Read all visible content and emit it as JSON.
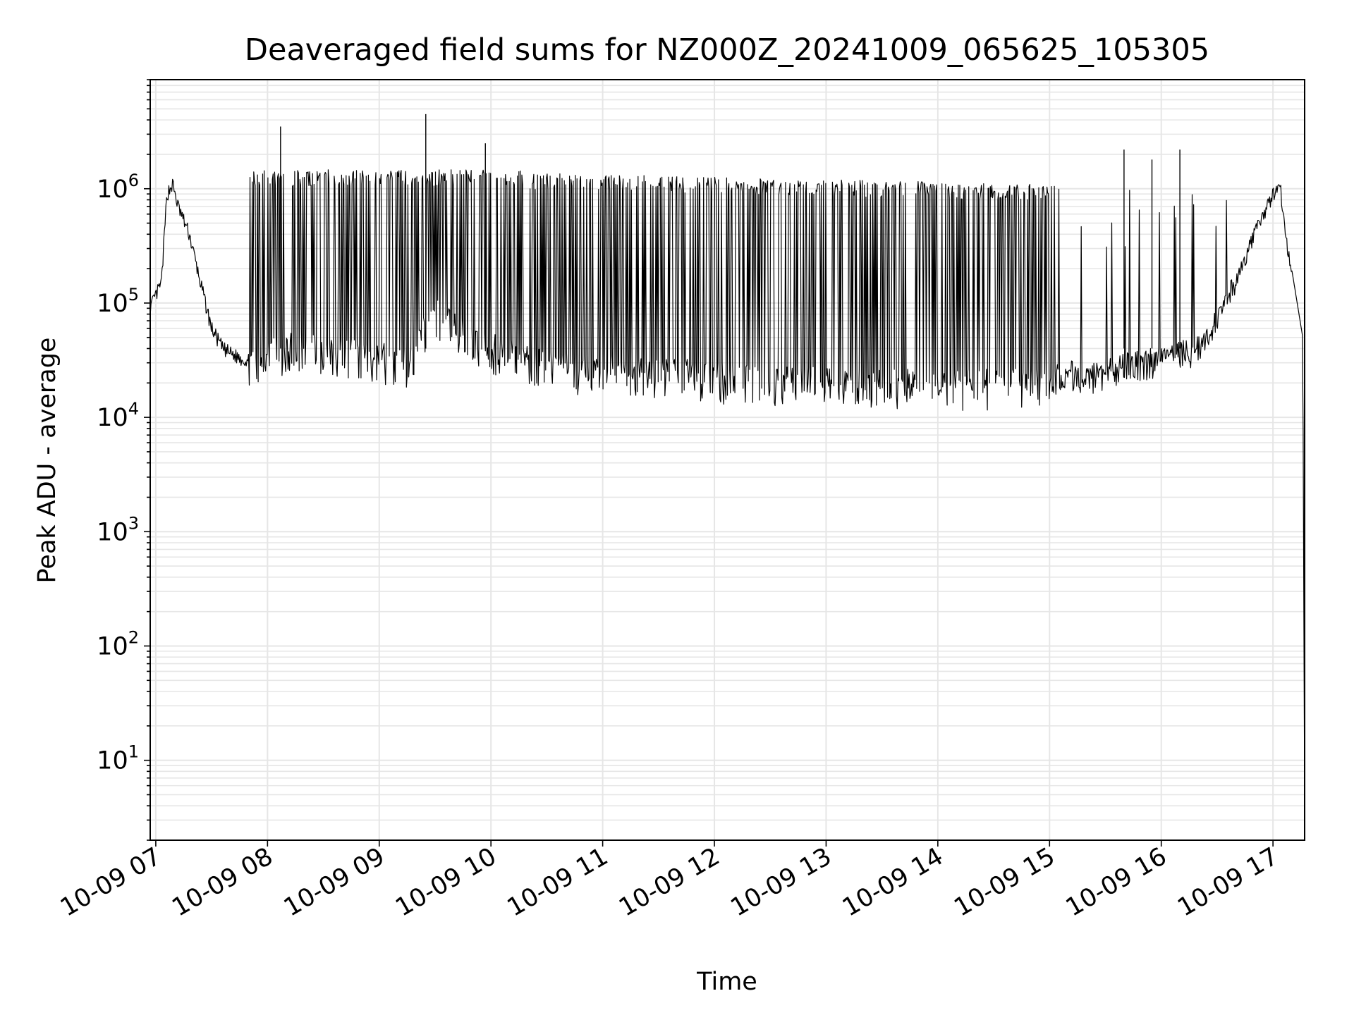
{
  "chart_data": {
    "type": "line",
    "title": "Deaveraged field sums for NZ000Z_20241009_065625_105305",
    "xlabel": "Time",
    "ylabel": "Peak ADU - average",
    "yscale": "log",
    "ylim": [
      2,
      9000000
    ],
    "xlim": [
      "2024-10-09 06:57",
      "2024-10-09 17:17"
    ],
    "grid": true,
    "legend": "none",
    "line_color": "#000000",
    "x_tick_labels": [
      "10-09 07",
      "10-09 08",
      "10-09 09",
      "10-09 10",
      "10-09 11",
      "10-09 12",
      "10-09 13",
      "10-09 14",
      "10-09 15",
      "10-09 16",
      "10-09 17"
    ],
    "x_ticks": [
      "2024-10-09 07:00",
      "2024-10-09 08:00",
      "2024-10-09 09:00",
      "2024-10-09 10:00",
      "2024-10-09 11:00",
      "2024-10-09 12:00",
      "2024-10-09 13:00",
      "2024-10-09 14:00",
      "2024-10-09 15:00",
      "2024-10-09 16:00",
      "2024-10-09 17:00"
    ],
    "y_ticks": [
      10,
      100,
      1000,
      10000,
      100000,
      1000000
    ],
    "y_tick_labels": [
      {
        "base": "10",
        "exp": "1"
      },
      {
        "base": "10",
        "exp": "2"
      },
      {
        "base": "10",
        "exp": "3"
      },
      {
        "base": "10",
        "exp": "4"
      },
      {
        "base": "10",
        "exp": "5"
      },
      {
        "base": "10",
        "exp": "6"
      }
    ],
    "series": [
      {
        "x": [
          "2024-10-09 06:57",
          "2024-10-09 07:03",
          "2024-10-09 07:06",
          "2024-10-09 07:09",
          "2024-10-09 07:12",
          "2024-10-09 07:18",
          "2024-10-09 07:24",
          "2024-10-09 07:30",
          "2024-10-09 07:36",
          "2024-10-09 07:42",
          "2024-10-09 07:48",
          "2024-10-09 07:54",
          "2024-10-09 08:00",
          "2024-10-09 08:15",
          "2024-10-09 08:30",
          "2024-10-09 08:45",
          "2024-10-09 09:00",
          "2024-10-09 09:15",
          "2024-10-09 09:30",
          "2024-10-09 09:40",
          "2024-10-09 09:50",
          "2024-10-09 10:00",
          "2024-10-09 10:10",
          "2024-10-09 10:20",
          "2024-10-09 10:30",
          "2024-10-09 11:00",
          "2024-10-09 11:30",
          "2024-10-09 12:00",
          "2024-10-09 12:30",
          "2024-10-09 13:00",
          "2024-10-09 13:30",
          "2024-10-09 14:00",
          "2024-10-09 14:30",
          "2024-10-09 15:00",
          "2024-10-09 15:10",
          "2024-10-09 15:20",
          "2024-10-09 15:40",
          "2024-10-09 16:00",
          "2024-10-09 16:20",
          "2024-10-09 16:30",
          "2024-10-09 16:40",
          "2024-10-09 16:50",
          "2024-10-09 17:00",
          "2024-10-09 17:04",
          "2024-10-09 17:07",
          "2024-10-09 17:10",
          "2024-10-09 17:13",
          "2024-10-09 17:16",
          "2024-10-09 17:17"
        ],
        "y": [
          90000,
          150000,
          900000,
          1100000,
          700000,
          400000,
          150000,
          60000,
          40000,
          35000,
          32000,
          30000,
          35000,
          40000,
          38000,
          36000,
          32000,
          30000,
          80000,
          60000,
          45000,
          40000,
          35000,
          30000,
          28000,
          25000,
          24000,
          22000,
          20000,
          20000,
          19000,
          19000,
          19000,
          19000,
          25000,
          22000,
          28000,
          32000,
          40000,
          70000,
          150000,
          400000,
          900000,
          1000000,
          350000,
          200000,
          100000,
          50000,
          4
        ]
      }
    ]
  }
}
